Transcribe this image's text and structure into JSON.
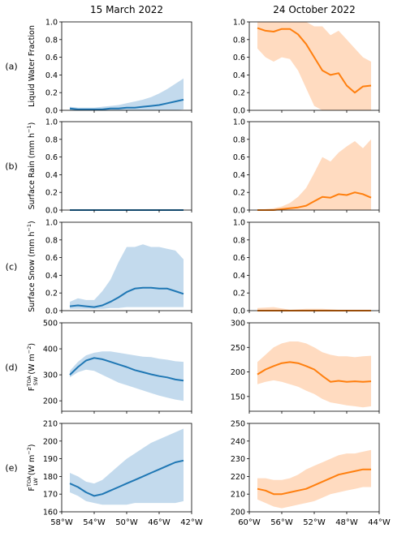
{
  "columns": [
    {
      "title": "15 March 2022",
      "color": "#1f77b4",
      "band": "#b9d3ea"
    },
    {
      "title": "24 October 2022",
      "color": "#ff7f0e",
      "band": "#ffd5b5"
    }
  ],
  "row_labels": [
    "(a)",
    "(b)",
    "(c)",
    "(d)",
    "(e)"
  ],
  "ylabels": [
    {
      "main": "Liquid Water Fraction"
    },
    {
      "main": "Surface Rain (mm h",
      "sup": "−1",
      "tail": ")"
    },
    {
      "main": "Surface Snow (mm h",
      "sup": "−1",
      "tail": ")"
    },
    {
      "main": "F",
      "sup": "TOA",
      "sub": "SW",
      "tail": " (W m",
      "sup2": "−2",
      "tail2": ")"
    },
    {
      "main": "F",
      "sup": "TOA",
      "sub": "LW",
      "tail": " (W m",
      "sup2": "−2",
      "tail2": ")"
    }
  ],
  "chart_data": [
    {
      "type": "line",
      "panel": "a-left",
      "title": "15 March 2022",
      "ylabel": "Liquid Water Fraction",
      "xlim": [
        -58,
        -42
      ],
      "ylim": [
        0,
        1
      ],
      "yticks": [
        0.0,
        0.2,
        0.4,
        0.6,
        0.8,
        1.0
      ],
      "ytick_labels": [
        "0.0",
        "0.2",
        "0.4",
        "0.6",
        "0.8",
        "1.0"
      ],
      "x": [
        -57,
        -56,
        -55,
        -54,
        -53,
        -52,
        -51,
        -50,
        -49,
        -48,
        -47,
        -46,
        -45,
        -44,
        -43
      ],
      "mean": [
        0.02,
        0.01,
        0.01,
        0.01,
        0.01,
        0.02,
        0.02,
        0.03,
        0.03,
        0.04,
        0.05,
        0.06,
        0.08,
        0.1,
        0.12
      ],
      "lower": [
        0.0,
        0.0,
        0.0,
        0.0,
        0.0,
        0.0,
        0.0,
        0.0,
        0.0,
        0.0,
        0.0,
        0.0,
        0.0,
        0.0,
        0.01
      ],
      "upper": [
        0.04,
        0.03,
        0.03,
        0.03,
        0.04,
        0.05,
        0.06,
        0.08,
        0.1,
        0.12,
        0.15,
        0.19,
        0.24,
        0.3,
        0.36
      ]
    },
    {
      "type": "line",
      "panel": "a-right",
      "title": "24 October 2022",
      "xlim": [
        -60,
        -44
      ],
      "ylim": [
        0,
        1
      ],
      "yticks": [
        0.0,
        0.2,
        0.4,
        0.6,
        0.8,
        1.0
      ],
      "ytick_labels": [
        "0.0",
        "0.2",
        "0.4",
        "0.6",
        "0.8",
        "1.0"
      ],
      "x": [
        -59,
        -58,
        -57,
        -56,
        -55,
        -54,
        -53,
        -52,
        -51,
        -50,
        -49,
        -48,
        -47,
        -46,
        -45
      ],
      "mean": [
        0.93,
        0.9,
        0.89,
        0.92,
        0.92,
        0.86,
        0.75,
        0.6,
        0.45,
        0.4,
        0.42,
        0.28,
        0.2,
        0.27,
        0.28
      ],
      "lower": [
        0.7,
        0.6,
        0.55,
        0.6,
        0.58,
        0.45,
        0.25,
        0.05,
        0.0,
        0.0,
        0.0,
        0.0,
        0.0,
        0.0,
        0.0
      ],
      "upper": [
        1.0,
        1.0,
        1.0,
        1.0,
        1.0,
        1.0,
        1.0,
        0.95,
        0.95,
        0.85,
        0.9,
        0.8,
        0.7,
        0.6,
        0.55
      ]
    },
    {
      "type": "line",
      "panel": "b-left",
      "ylabel": "Surface Rain (mm h−1)",
      "xlim": [
        -58,
        -42
      ],
      "ylim": [
        0,
        1
      ],
      "yticks": [
        0.0,
        0.2,
        0.4,
        0.6,
        0.8,
        1.0
      ],
      "ytick_labels": [
        "0.0",
        "0.2",
        "0.4",
        "0.6",
        "0.8",
        "1.0"
      ],
      "x": [
        -57,
        -55,
        -53,
        -51,
        -49,
        -47,
        -45,
        -43
      ],
      "mean": [
        0,
        0,
        0,
        0,
        0,
        0,
        0,
        0
      ],
      "lower": [
        0,
        0,
        0,
        0,
        0,
        0,
        0,
        0
      ],
      "upper": [
        0,
        0,
        0,
        0,
        0,
        0,
        0,
        0
      ]
    },
    {
      "type": "line",
      "panel": "b-right",
      "xlim": [
        -60,
        -44
      ],
      "ylim": [
        0,
        1
      ],
      "yticks": [
        0.0,
        0.2,
        0.4,
        0.6,
        0.8,
        1.0
      ],
      "ytick_labels": [
        "0.0",
        "0.2",
        "0.4",
        "0.6",
        "0.8",
        "1.0"
      ],
      "x": [
        -59,
        -58,
        -57,
        -56,
        -55,
        -54,
        -53,
        -52,
        -51,
        -50,
        -49,
        -48,
        -47,
        -46,
        -45
      ],
      "mean": [
        0.0,
        0.0,
        0.0,
        0.01,
        0.02,
        0.03,
        0.05,
        0.1,
        0.15,
        0.14,
        0.18,
        0.17,
        0.2,
        0.18,
        0.14
      ],
      "lower": [
        0,
        0,
        0,
        0,
        0,
        0,
        0,
        0,
        0,
        0,
        0,
        0,
        0,
        0,
        0
      ],
      "upper": [
        0.0,
        0.01,
        0.02,
        0.04,
        0.08,
        0.15,
        0.25,
        0.42,
        0.6,
        0.55,
        0.65,
        0.72,
        0.78,
        0.7,
        0.8
      ]
    },
    {
      "type": "line",
      "panel": "c-left",
      "ylabel": "Surface Snow (mm h−1)",
      "xlim": [
        -58,
        -42
      ],
      "ylim": [
        0,
        1
      ],
      "yticks": [
        0.0,
        0.2,
        0.4,
        0.6,
        0.8,
        1.0
      ],
      "ytick_labels": [
        "0.0",
        "0.2",
        "0.4",
        "0.6",
        "0.8",
        "1.0"
      ],
      "x": [
        -57,
        -56,
        -55,
        -54,
        -53,
        -52,
        -51,
        -50,
        -49,
        -48,
        -47,
        -46,
        -45,
        -44,
        -43
      ],
      "mean": [
        0.05,
        0.06,
        0.05,
        0.04,
        0.06,
        0.1,
        0.15,
        0.21,
        0.25,
        0.26,
        0.26,
        0.25,
        0.25,
        0.22,
        0.19
      ],
      "lower": [
        0.02,
        0.02,
        0.02,
        0.02,
        0.02,
        0.03,
        0.03,
        0.04,
        0.04,
        0.04,
        0.04,
        0.04,
        0.04,
        0.04,
        0.04
      ],
      "upper": [
        0.1,
        0.14,
        0.12,
        0.12,
        0.22,
        0.35,
        0.55,
        0.72,
        0.72,
        0.75,
        0.72,
        0.72,
        0.7,
        0.68,
        0.58
      ]
    },
    {
      "type": "line",
      "panel": "c-right",
      "xlim": [
        -60,
        -44
      ],
      "ylim": [
        0,
        1
      ],
      "yticks": [
        0.0,
        0.2,
        0.4,
        0.6,
        0.8,
        1.0
      ],
      "ytick_labels": [
        "0.0",
        "0.2",
        "0.4",
        "0.6",
        "0.8",
        "1.0"
      ],
      "x": [
        -59,
        -57,
        -55,
        -53,
        -51,
        -49,
        -47,
        -45
      ],
      "mean": [
        0.0,
        0.0,
        0.0,
        0.0,
        0.0,
        0.0,
        0.0,
        0.0
      ],
      "lower": [
        0,
        0,
        0,
        0,
        0,
        0,
        0,
        0
      ],
      "upper": [
        0.03,
        0.04,
        0.01,
        0.02,
        0.02,
        0.01,
        0.01,
        0.01
      ]
    },
    {
      "type": "line",
      "panel": "d-left",
      "ylabel": "F_SW^TOA (W m−2)",
      "xlim": [
        -58,
        -42
      ],
      "ylim": [
        160,
        500
      ],
      "yticks": [
        200,
        300,
        400,
        500
      ],
      "ytick_labels": [
        "200",
        "300",
        "400",
        "500"
      ],
      "x": [
        -57,
        -56,
        -55,
        -54,
        -53,
        -52,
        -51,
        -50,
        -49,
        -48,
        -47,
        -46,
        -45,
        -44,
        -43
      ],
      "mean": [
        300,
        330,
        355,
        365,
        360,
        350,
        340,
        330,
        318,
        310,
        302,
        295,
        290,
        282,
        278
      ],
      "lower": [
        290,
        310,
        320,
        315,
        300,
        285,
        270,
        260,
        250,
        240,
        230,
        220,
        212,
        205,
        200
      ],
      "upper": [
        315,
        350,
        375,
        385,
        390,
        390,
        385,
        380,
        375,
        370,
        368,
        362,
        358,
        352,
        350
      ]
    },
    {
      "type": "line",
      "panel": "d-right",
      "xlim": [
        -60,
        -44
      ],
      "ylim": [
        120,
        300
      ],
      "yticks": [
        150,
        200,
        250,
        300
      ],
      "ytick_labels": [
        "150",
        "200",
        "250",
        "300"
      ],
      "x": [
        -59,
        -58,
        -57,
        -56,
        -55,
        -54,
        -53,
        -52,
        -51,
        -50,
        -49,
        -48,
        -47,
        -46,
        -45
      ],
      "mean": [
        195,
        205,
        212,
        218,
        220,
        218,
        212,
        205,
        192,
        180,
        182,
        180,
        181,
        180,
        181
      ],
      "lower": [
        175,
        180,
        183,
        180,
        175,
        170,
        162,
        155,
        145,
        138,
        135,
        132,
        130,
        128,
        130
      ],
      "upper": [
        220,
        235,
        250,
        258,
        262,
        262,
        258,
        250,
        240,
        235,
        232,
        232,
        230,
        232,
        233
      ]
    },
    {
      "type": "line",
      "panel": "e-left",
      "ylabel": "F_LW^TOA (W m−2)",
      "xlim": [
        -58,
        -42
      ],
      "ylim": [
        160,
        210
      ],
      "yticks": [
        160,
        170,
        180,
        190,
        200,
        210
      ],
      "ytick_labels": [
        "160",
        "170",
        "180",
        "190",
        "200",
        "210"
      ],
      "x": [
        -57,
        -56,
        -55,
        -54,
        -53,
        -52,
        -51,
        -50,
        -49,
        -48,
        -47,
        -46,
        -45,
        -44,
        -43
      ],
      "mean": [
        176,
        174,
        171,
        169,
        170,
        172,
        174,
        176,
        178,
        180,
        182,
        184,
        186,
        188,
        189
      ],
      "lower": [
        171,
        169,
        166,
        165,
        164,
        164,
        164,
        164,
        165,
        165,
        165,
        165,
        165,
        165,
        166
      ],
      "upper": [
        182,
        180,
        177,
        176,
        178,
        182,
        186,
        190,
        193,
        196,
        199,
        201,
        203,
        205,
        207
      ]
    },
    {
      "type": "line",
      "panel": "e-right",
      "xlim": [
        -60,
        -44
      ],
      "ylim": [
        200,
        250
      ],
      "yticks": [
        200,
        210,
        220,
        230,
        240,
        250
      ],
      "ytick_labels": [
        "200",
        "210",
        "220",
        "230",
        "240",
        "250"
      ],
      "x": [
        -59,
        -58,
        -57,
        -56,
        -55,
        -54,
        -53,
        -52,
        -51,
        -50,
        -49,
        -48,
        -47,
        -46,
        -45
      ],
      "mean": [
        213,
        212,
        210,
        210,
        211,
        212,
        213,
        215,
        217,
        219,
        221,
        222,
        223,
        224,
        224
      ],
      "lower": [
        207,
        205,
        203,
        202,
        203,
        204,
        205,
        206,
        208,
        210,
        211,
        212,
        213,
        214,
        214
      ],
      "upper": [
        219,
        219,
        218,
        218,
        219,
        221,
        224,
        226,
        228,
        230,
        232,
        233,
        233,
        234,
        235
      ]
    }
  ],
  "xticks": [
    {
      "values": [
        -58,
        -54,
        -50,
        -46,
        -42
      ],
      "labels": [
        "58°W",
        "54°W",
        "50°W",
        "46°W",
        "42°W"
      ]
    },
    {
      "values": [
        -60,
        -56,
        -52,
        -48,
        -44
      ],
      "labels": [
        "60°W",
        "56°W",
        "52°W",
        "48°W",
        "44°W"
      ]
    }
  ]
}
